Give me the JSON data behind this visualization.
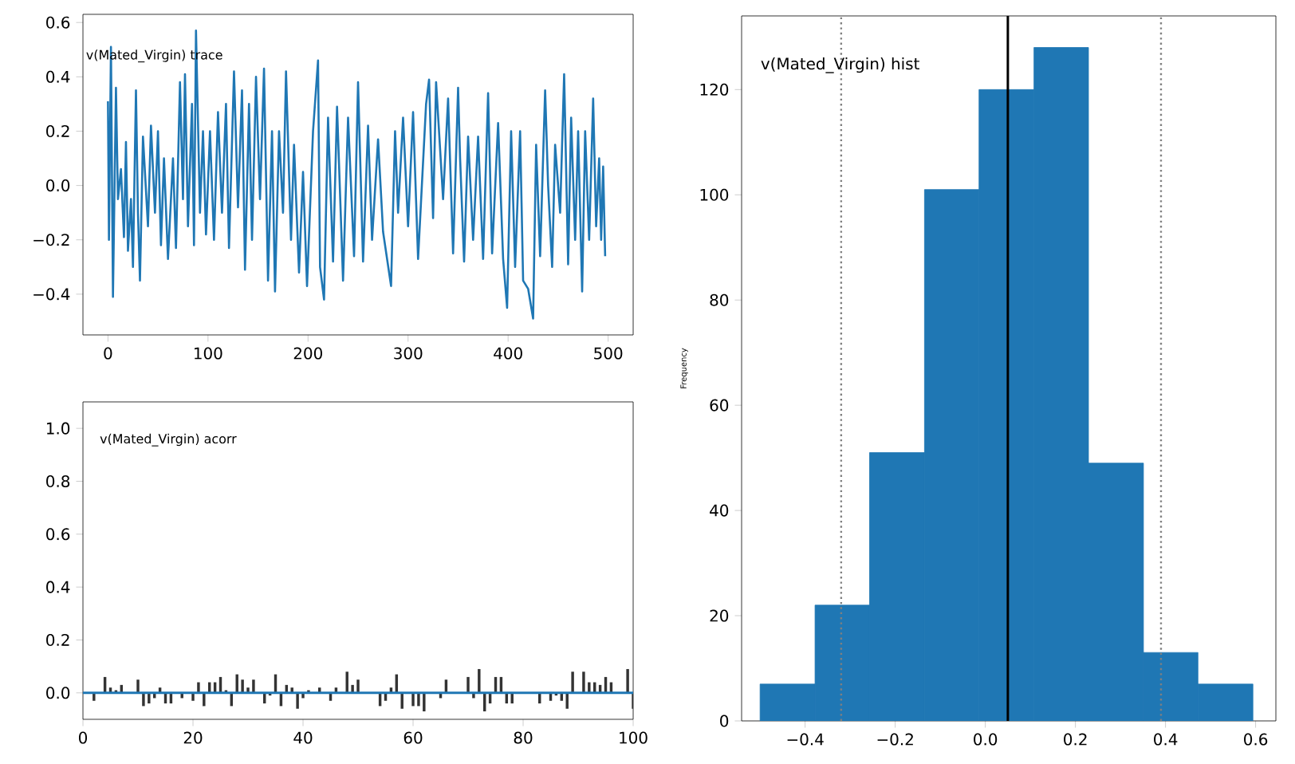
{
  "chart_data": [
    {
      "type": "line",
      "annotations": [
        "v(Mated_Virgin) trace"
      ],
      "color": "#1f77b4",
      "xlim": [
        -25,
        525
      ],
      "ylim": [
        -0.55,
        0.63
      ],
      "xticks": [
        0,
        100,
        200,
        300,
        400,
        500
      ],
      "yticks": [
        {
          "value": -0.4,
          "label": "−0.4"
        },
        {
          "value": -0.2,
          "label": "−0.2"
        },
        {
          "value": 0,
          "label": "0.0"
        },
        {
          "value": 0.2,
          "label": "0.2"
        },
        {
          "value": 0.4,
          "label": "0.4"
        },
        {
          "value": 0.6,
          "label": "0.6"
        }
      ],
      "x": [
        0,
        1,
        3,
        5,
        8,
        10,
        13,
        16,
        18,
        20,
        23,
        25,
        28,
        30,
        32,
        35,
        40,
        43,
        47,
        50,
        53,
        56,
        60,
        65,
        68,
        72,
        75,
        77,
        80,
        84,
        86,
        88,
        92,
        95,
        98,
        102,
        106,
        110,
        114,
        118,
        121,
        126,
        130,
        134,
        137,
        141,
        144,
        148,
        152,
        156,
        160,
        164,
        167,
        171,
        175,
        178,
        183,
        186,
        191,
        195,
        199,
        205,
        210,
        212,
        216,
        220,
        225,
        229,
        235,
        240,
        246,
        250,
        255,
        260,
        264,
        270,
        275,
        283,
        287,
        290,
        295,
        300,
        305,
        310,
        318,
        321,
        325,
        328,
        335,
        340,
        345,
        350,
        352,
        356,
        360,
        365,
        370,
        375,
        380,
        384,
        390,
        395,
        399,
        403,
        407,
        412,
        415,
        420,
        425,
        428,
        432,
        437,
        440,
        444,
        447,
        452,
        456,
        460,
        463,
        467,
        470,
        474,
        477,
        481,
        485,
        488,
        491,
        493,
        495,
        497
      ],
      "values": [
        0.31,
        -0.2,
        0.51,
        -0.41,
        0.36,
        -0.05,
        0.06,
        -0.19,
        0.16,
        -0.24,
        -0.05,
        -0.3,
        0.35,
        -0.1,
        -0.35,
        0.18,
        -0.15,
        0.22,
        -0.1,
        0.2,
        -0.22,
        0.1,
        -0.27,
        0.1,
        -0.23,
        0.38,
        -0.05,
        0.41,
        -0.15,
        0.3,
        -0.22,
        0.57,
        -0.1,
        0.2,
        -0.18,
        0.2,
        -0.2,
        0.27,
        -0.1,
        0.3,
        -0.23,
        0.42,
        -0.08,
        0.35,
        -0.31,
        0.3,
        -0.2,
        0.4,
        -0.05,
        0.43,
        -0.35,
        0.2,
        -0.39,
        0.2,
        -0.1,
        0.42,
        -0.2,
        0.15,
        -0.32,
        0.05,
        -0.37,
        0.2,
        0.46,
        -0.3,
        -0.42,
        0.25,
        -0.28,
        0.29,
        -0.35,
        0.25,
        -0.26,
        0.38,
        -0.28,
        0.22,
        -0.2,
        0.17,
        -0.17,
        -0.37,
        0.2,
        -0.1,
        0.25,
        -0.15,
        0.27,
        -0.27,
        0.3,
        0.39,
        -0.12,
        0.38,
        -0.05,
        0.32,
        -0.25,
        0.36,
        0.1,
        -0.28,
        0.18,
        -0.2,
        0.18,
        -0.27,
        0.34,
        -0.25,
        0.23,
        -0.27,
        -0.45,
        0.2,
        -0.3,
        0.2,
        -0.35,
        -0.38,
        -0.49,
        0.15,
        -0.26,
        0.35,
        0,
        -0.3,
        0.15,
        -0.1,
        0.41,
        -0.29,
        0.25,
        -0.2,
        0.2,
        -0.39,
        0.2,
        -0.2,
        0.32,
        -0.15,
        0.1,
        -0.2,
        0.07,
        -0.26
      ]
    },
    {
      "type": "bar",
      "annotations": [
        "v(Mated_Virgin) acorr"
      ],
      "color": "#333333",
      "xlim": [
        0,
        100
      ],
      "ylim": [
        -0.1,
        1.1
      ],
      "xticks": [
        0,
        20,
        40,
        60,
        80,
        100
      ],
      "yticks": [
        {
          "value": 0,
          "label": "0.0"
        },
        {
          "value": 0.2,
          "label": "0.2"
        },
        {
          "value": 0.4,
          "label": "0.4"
        },
        {
          "value": 0.6,
          "label": "0.6"
        },
        {
          "value": 0.8,
          "label": "0.8"
        },
        {
          "value": 1,
          "label": "1.0"
        }
      ],
      "ref_lines": [
        {
          "axis": "y",
          "value": 0,
          "color": "#1f77b4"
        }
      ],
      "x": [
        2,
        3,
        4,
        5,
        6,
        7,
        8,
        9,
        10,
        11,
        12,
        13,
        14,
        15,
        16,
        17,
        18,
        19,
        20,
        21,
        22,
        23,
        24,
        25,
        26,
        27,
        28,
        29,
        30,
        31,
        32,
        33,
        34,
        35,
        36,
        37,
        38,
        39,
        40,
        41,
        42,
        43,
        44,
        45,
        46,
        47,
        48,
        49,
        50,
        51,
        52,
        53,
        54,
        55,
        56,
        57,
        58,
        59,
        60,
        61,
        62,
        63,
        64,
        65,
        66,
        67,
        68,
        69,
        70,
        71,
        72,
        73,
        74,
        75,
        76,
        77,
        78,
        79,
        80,
        81,
        82,
        83,
        84,
        85,
        86,
        87,
        88,
        89,
        90,
        91,
        92,
        93,
        94,
        95,
        96,
        97,
        98,
        99,
        100
      ],
      "values": [
        -0.03,
        0,
        0.06,
        0.02,
        0.01,
        0.03,
        0,
        null,
        0.05,
        -0.05,
        -0.04,
        -0.02,
        0.02,
        -0.04,
        -0.04,
        0,
        -0.02,
        null,
        -0.03,
        0.04,
        -0.05,
        0.04,
        0.04,
        0.06,
        0.01,
        -0.05,
        0.07,
        0.05,
        0.02,
        0.05,
        0,
        -0.04,
        -0.01,
        0.07,
        -0.05,
        0.03,
        0.02,
        -0.06,
        -0.02,
        0.01,
        0,
        0.02,
        0,
        -0.03,
        0.02,
        0,
        0.08,
        0.03,
        0.05,
        null,
        0,
        0,
        -0.05,
        -0.03,
        0.02,
        0.07,
        -0.06,
        0,
        -0.05,
        -0.05,
        -0.07,
        0,
        0,
        -0.02,
        0.05,
        0,
        0,
        0,
        0.06,
        -0.02,
        0.09,
        -0.07,
        -0.04,
        0.06,
        0.06,
        -0.04,
        -0.04,
        0,
        null,
        0,
        null,
        -0.04,
        0,
        -0.03,
        -0.01,
        -0.03,
        -0.06,
        0.08,
        0,
        0.08,
        0.04,
        0.04,
        0.03,
        0.06,
        0.04,
        0,
        0,
        0.09,
        -0.06
      ]
    },
    {
      "type": "histogram",
      "annotations": [
        "v(Mated_Virgin) hist"
      ],
      "ylabel": "Frequency",
      "color": "#1f77b4",
      "xlim": [
        -0.541,
        0.645
      ],
      "ylim": [
        0,
        134
      ],
      "xticks": [
        {
          "value": -0.4,
          "label": "−0.4"
        },
        {
          "value": -0.2,
          "label": "−0.2"
        },
        {
          "value": 0,
          "label": "0.0"
        },
        {
          "value": 0.2,
          "label": "0.2"
        },
        {
          "value": 0.4,
          "label": "0.4"
        },
        {
          "value": 0.6,
          "label": "0.6"
        }
      ],
      "yticks": [
        0,
        20,
        40,
        60,
        80,
        100,
        120
      ],
      "bins": [
        -0.5,
        -0.378,
        -0.257,
        -0.135,
        -0.014,
        0.108,
        0.229,
        0.351,
        0.472,
        0.594
      ],
      "values": [
        7,
        22,
        51,
        101,
        120,
        128,
        49,
        13,
        7
      ],
      "ref_lines": [
        {
          "axis": "x",
          "value": -0.32,
          "color": "#808080",
          "line_style": "dotted"
        },
        {
          "axis": "x",
          "value": 0.05,
          "color": "#000000",
          "line_style": "solid"
        },
        {
          "axis": "x",
          "value": 0.39,
          "color": "#808080",
          "line_style": "dotted"
        }
      ]
    }
  ]
}
